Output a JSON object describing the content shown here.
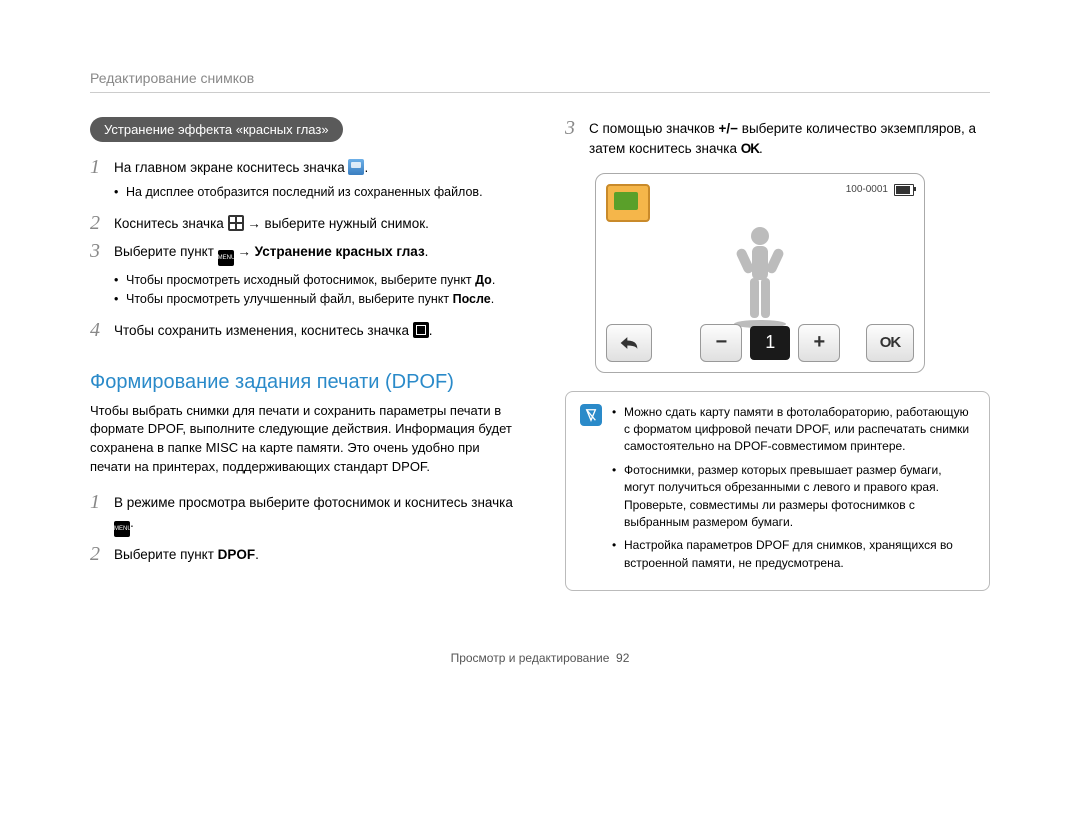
{
  "header": "Редактирование снимков",
  "left": {
    "pill": "Устранение эффекта «красных глаз»",
    "steps": [
      {
        "num": "1",
        "text": "На главном экране коснитесь значка ",
        "icon": "gallery",
        "after": ".",
        "subs": [
          "На дисплее отобразится последний из сохраненных файлов."
        ]
      },
      {
        "num": "2",
        "pre": "Коснитесь значка ",
        "icon": "grid",
        "mid": " → выберите нужный снимок."
      },
      {
        "num": "3",
        "pre": "Выберите пункт ",
        "icon": "menu",
        "mid_bold": " → Устранение красных глаз",
        "after": ".",
        "subs": [
          "Чтобы просмотреть исходный фотоснимок, выберите пункт <b>До</b>.",
          "Чтобы просмотреть улучшенный файл, выберите пункт <b>После</b>."
        ]
      },
      {
        "num": "4",
        "pre": "Чтобы сохранить изменения, коснитесь значка ",
        "icon": "save",
        "after": "."
      }
    ],
    "section_title": "Формирование задания печати (DPOF)",
    "section_para": "Чтобы выбрать снимки для печати и сохранить параметры печати в формате DPOF, выполните следующие действия. Информация будет сохранена в папке MISC на карте памяти. Это очень удобно при печати на принтерах, поддерживающих стандарт DPOF.",
    "dpof_steps": [
      {
        "num": "1",
        "pre": "В режиме просмотра выберите фотоснимок и коснитесь значка ",
        "icon": "menu",
        "after": "."
      },
      {
        "num": "2",
        "text_plain": "Выберите пункт ",
        "bold": "DPOF",
        "after": "."
      }
    ]
  },
  "right": {
    "step3": {
      "num": "3",
      "pre": "С помощью значков ",
      "plusminus": "+/−",
      "mid": " выберите количество экземпляров, а затем коснитесь значка ",
      "ok": "OK",
      "after": "."
    },
    "screenshot": {
      "file_id": "100-0001",
      "count": "1",
      "ok": "OK",
      "minus": "−",
      "plus": "+"
    },
    "notes": [
      "Можно сдать карту памяти в фотолабораторию, работающую с форматом цифровой печати DPOF, или распечатать снимки самостоятельно на DPOF-совместимом принтере.",
      "Фотоснимки, размер которых превышает размер бумаги, могут получиться обрезанными с левого и правого края. Проверьте, совместимы ли размеры фотоснимков с выбранным размером бумаги.",
      "Настройка параметров DPOF для снимков, хранящихся во встроенной памяти, не предусмотрена."
    ]
  },
  "footer": {
    "label": "Просмотр и редактирование",
    "page": "92"
  },
  "colors": {
    "accent": "#2a8ac9",
    "pill_bg": "#5a5a5a",
    "step_num": "#888888"
  }
}
